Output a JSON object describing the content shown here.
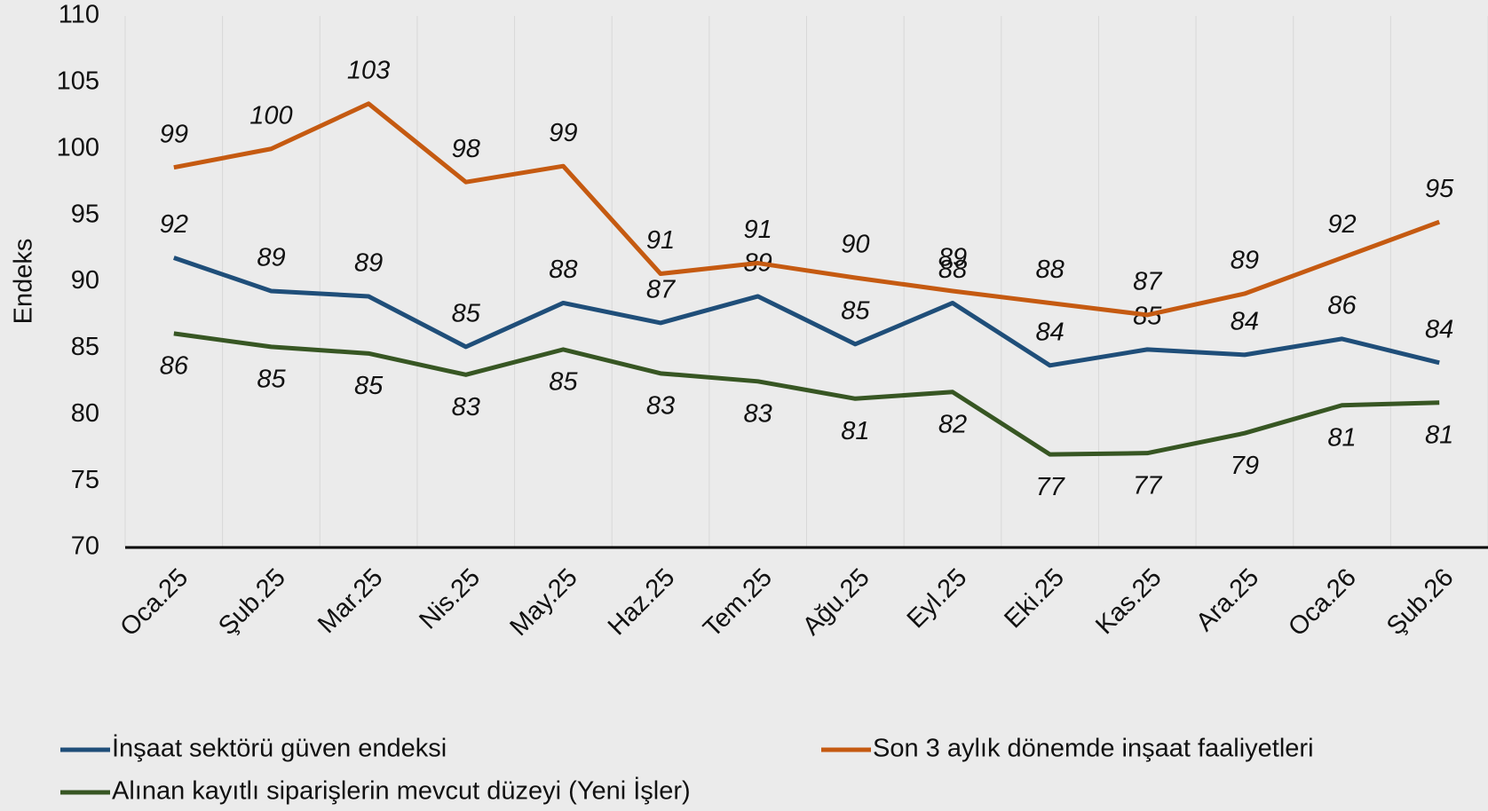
{
  "chart_data": {
    "type": "line",
    "y_label": "Endeks",
    "categories": [
      "Oca.25",
      "Şub.25",
      "Mar.25",
      "Nis.25",
      "May.25",
      "Haz.25",
      "Tem.25",
      "Ağu.25",
      "Eyl.25",
      "Eki.25",
      "Kas.25",
      "Ara.25",
      "Oca.26",
      "Şub.26"
    ],
    "series": [
      {
        "name": "İnşaat sektörü güven endeksi",
        "color": "#1f4e79",
        "values": [
          91.8,
          89.3,
          88.9,
          85.1,
          88.4,
          86.9,
          88.9,
          85.3,
          88.4,
          83.7,
          84.9,
          84.5,
          85.7,
          83.9
        ],
        "value_labels": [
          "92",
          "89",
          "89",
          "85",
          "88",
          "87",
          "89",
          "85",
          "88",
          "84",
          "85",
          "84",
          "86",
          "84"
        ]
      },
      {
        "name": "Son 3 aylık dönemde inşaat faaliyetleri",
        "color": "#c55a11",
        "values": [
          98.6,
          100.0,
          103.4,
          97.5,
          98.7,
          90.6,
          91.4,
          90.3,
          89.3,
          88.4,
          87.5,
          89.1,
          91.8,
          94.5
        ],
        "value_labels": [
          "99",
          "100",
          "103",
          "98",
          "99",
          "91",
          "91",
          "90",
          "89",
          "88",
          "87",
          "89",
          "92",
          "95"
        ]
      },
      {
        "name": "Alınan kayıtlı siparişlerin mevcut düzeyi (Yeni İşler)",
        "color": "#375623",
        "values": [
          86.1,
          85.1,
          84.6,
          83.0,
          84.9,
          83.1,
          82.5,
          81.2,
          81.7,
          77.0,
          77.1,
          78.6,
          80.7,
          80.9
        ],
        "value_labels": [
          "86",
          "85",
          "85",
          "83",
          "85",
          "83",
          "83",
          "81",
          "82",
          "77",
          "77",
          "79",
          "81",
          "81"
        ]
      }
    ],
    "ylim": [
      70,
      110
    ],
    "yticks": [
      70,
      75,
      80,
      85,
      90,
      95,
      100,
      105,
      110
    ],
    "grid": true
  }
}
